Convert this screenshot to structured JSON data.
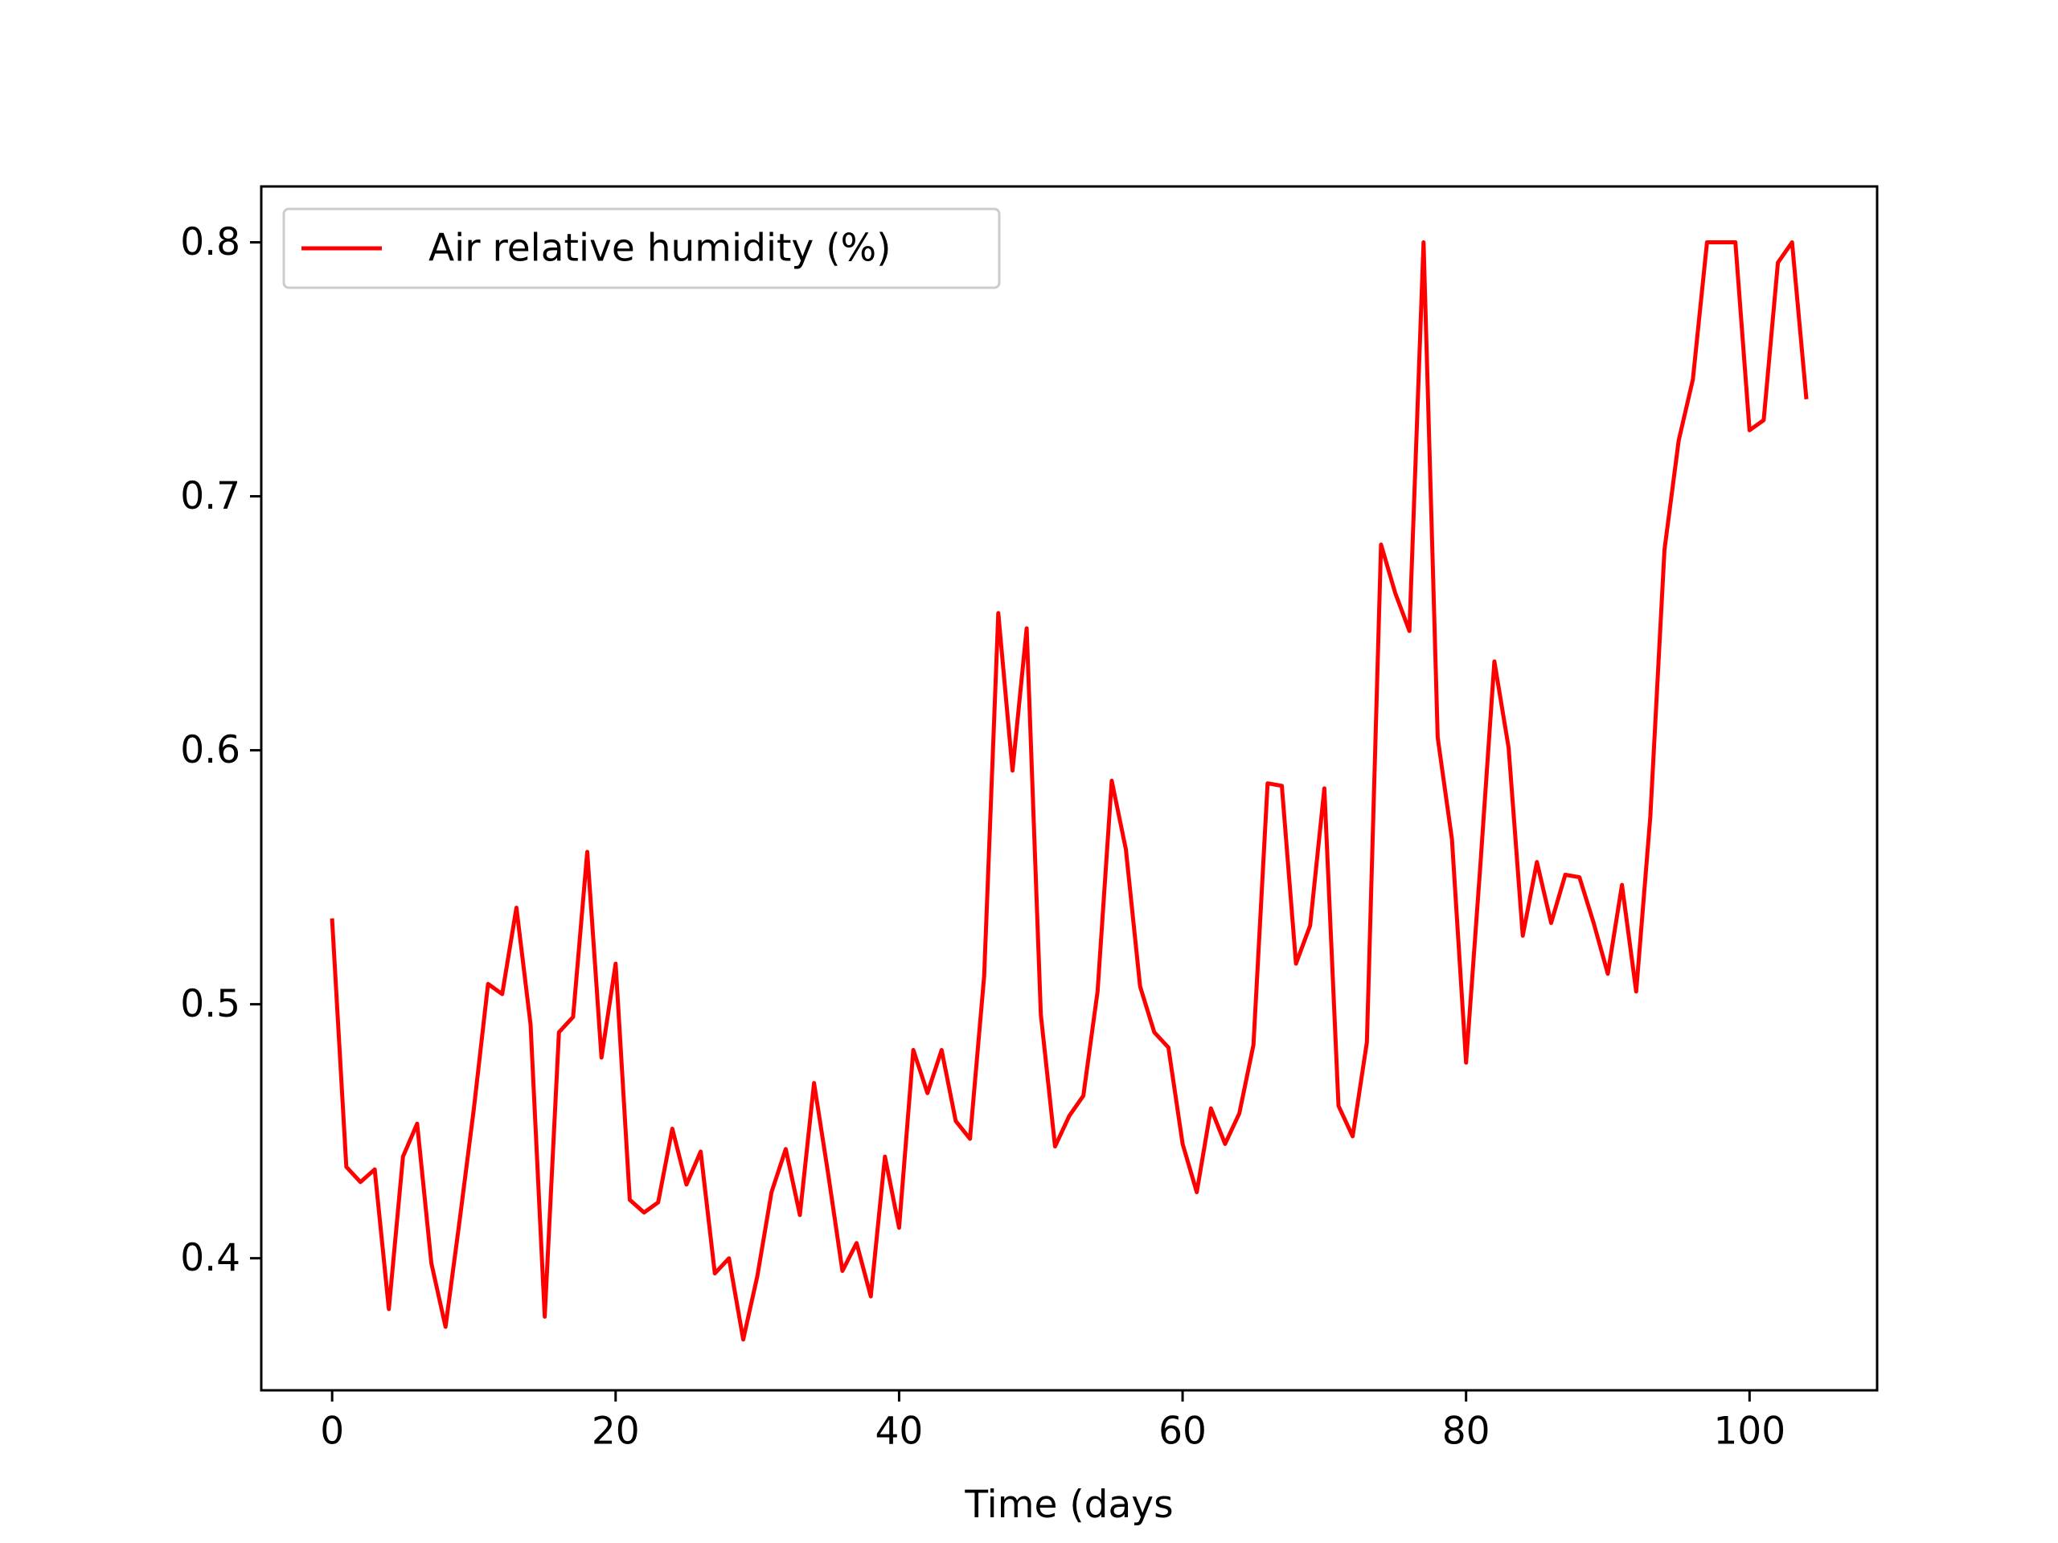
{
  "chart_data": {
    "type": "line",
    "title": "",
    "xlabel": "Time (days",
    "ylabel": "",
    "xlim": [
      -5,
      109
    ],
    "ylim": [
      0.348,
      0.822
    ],
    "xticks": [
      0,
      20,
      40,
      60,
      80,
      100
    ],
    "xtick_labels": [
      "0",
      "20",
      "40",
      "60",
      "80",
      "100"
    ],
    "yticks": [
      0.4,
      0.5,
      0.6,
      0.7,
      0.8
    ],
    "ytick_labels": [
      "0.4",
      "0.5",
      "0.6",
      "0.7",
      "0.8"
    ],
    "grid": false,
    "legend": {
      "position": "top-left"
    },
    "series": [
      {
        "name": "Air relative humidity (%)",
        "color": "#ff0000",
        "x": [
          0,
          1,
          2,
          3,
          4,
          5,
          6,
          7,
          8,
          9,
          10,
          11,
          12,
          13,
          14,
          15,
          16,
          17,
          18,
          19,
          20,
          21,
          22,
          23,
          24,
          25,
          26,
          27,
          28,
          29,
          30,
          31,
          32,
          33,
          34,
          35,
          36,
          37,
          38,
          39,
          40,
          41,
          42,
          43,
          44,
          45,
          46,
          47,
          48,
          49,
          50,
          51,
          52,
          53,
          54,
          55,
          56,
          57,
          58,
          59,
          60,
          61,
          62,
          63,
          64,
          65,
          66,
          67,
          68,
          69,
          70,
          71,
          72,
          73,
          74,
          75,
          76,
          77,
          78,
          79,
          80,
          81,
          82,
          83,
          84,
          85,
          86,
          87,
          88,
          89,
          90,
          91,
          92,
          93,
          94,
          95,
          96,
          97,
          98,
          99,
          100,
          101,
          102,
          103,
          104
        ],
        "y": [
          0.533,
          0.436,
          0.43,
          0.435,
          0.38,
          0.44,
          0.453,
          0.398,
          0.373,
          0.415,
          0.459,
          0.508,
          0.504,
          0.538,
          0.492,
          0.377,
          0.489,
          0.495,
          0.56,
          0.479,
          0.516,
          0.423,
          0.418,
          0.422,
          0.451,
          0.429,
          0.442,
          0.394,
          0.4,
          0.368,
          0.393,
          0.426,
          0.443,
          0.417,
          0.469,
          0.433,
          0.395,
          0.406,
          0.385,
          0.44,
          0.412,
          0.482,
          0.465,
          0.482,
          0.454,
          0.447,
          0.511,
          0.654,
          0.592,
          0.648,
          0.496,
          0.444,
          0.456,
          0.464,
          0.505,
          0.588,
          0.561,
          0.507,
          0.489,
          0.483,
          0.445,
          0.426,
          0.459,
          0.445,
          0.457,
          0.484,
          0.587,
          0.586,
          0.516,
          0.531,
          0.585,
          0.46,
          0.448,
          0.485,
          0.681,
          0.662,
          0.647,
          0.8,
          0.605,
          0.565,
          0.477,
          0.554,
          0.635,
          0.601,
          0.527,
          0.556,
          0.532,
          0.551,
          0.55,
          0.532,
          0.512,
          0.547,
          0.505,
          0.574,
          0.679,
          0.722,
          0.746,
          0.8,
          0.8,
          0.8,
          0.726,
          0.73,
          0.792,
          0.8,
          0.739
        ]
      }
    ]
  }
}
